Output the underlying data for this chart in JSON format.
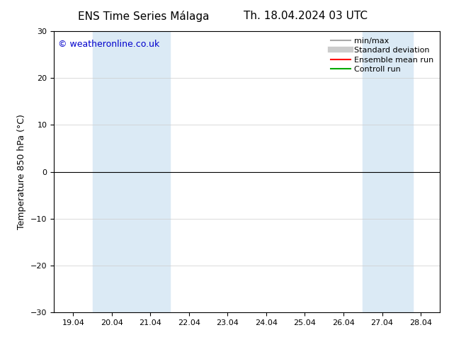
{
  "title_left": "ENS Time Series Málaga",
  "title_right": "Th. 18.04.2024 03 UTC",
  "ylabel": "Temperature 850 hPa (°C)",
  "ylim": [
    -30,
    30
  ],
  "yticks": [
    -30,
    -20,
    -10,
    0,
    10,
    20,
    30
  ],
  "x_tick_labels": [
    "19.04",
    "20.04",
    "21.04",
    "22.04",
    "23.04",
    "24.04",
    "25.04",
    "26.04",
    "27.04",
    "28.04"
  ],
  "x_tick_positions": [
    0,
    1,
    2,
    3,
    4,
    5,
    6,
    7,
    8,
    9
  ],
  "xlim": [
    -0.5,
    9.5
  ],
  "shaded_bands": [
    {
      "x_start": 0.5,
      "x_end": 2.5
    },
    {
      "x_start": 7.5,
      "x_end": 8.8
    }
  ],
  "shade_color": "#dbeaf5",
  "hline_y": 0,
  "hline_color": "#000000",
  "legend_items": [
    {
      "label": "min/max",
      "color": "#aaaaaa",
      "lw": 1.5,
      "ls": "-"
    },
    {
      "label": "Standard deviation",
      "color": "#cccccc",
      "lw": 6,
      "ls": "-"
    },
    {
      "label": "Ensemble mean run",
      "color": "#ff0000",
      "lw": 1.5,
      "ls": "-"
    },
    {
      "label": "Controll run",
      "color": "#00aa00",
      "lw": 1.5,
      "ls": "-"
    }
  ],
  "copyright_text": "© weatheronline.co.uk",
  "copyright_color": "#0000cc",
  "copyright_fontsize": 9,
  "background_color": "#ffffff",
  "grid_color": "#cccccc",
  "axis_label_fontsize": 9,
  "tick_fontsize": 8,
  "title_fontsize": 11
}
